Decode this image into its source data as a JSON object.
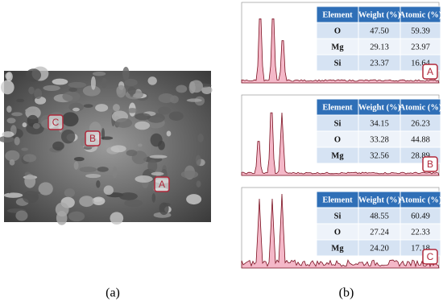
{
  "image": {
    "markers": [
      "A",
      "B",
      "C"
    ]
  },
  "spectra": [
    {
      "marker": "A",
      "table": {
        "header": [
          "Element",
          "Weight (%)",
          "Atomic (%)"
        ],
        "rows": [
          [
            "O",
            "47.50",
            "59.39"
          ],
          [
            "Mg",
            "29.13",
            "23.97"
          ],
          [
            "Si",
            "23.37",
            "16.64"
          ]
        ]
      }
    },
    {
      "marker": "B",
      "table": {
        "header": [
          "Element",
          "Weight (%)",
          "Atomic (%)"
        ],
        "rows": [
          [
            "Si",
            "34.15",
            "26.23"
          ],
          [
            "O",
            "33.28",
            "44.88"
          ],
          [
            "Mg",
            "32.56",
            "28.89"
          ]
        ]
      }
    },
    {
      "marker": "C",
      "table": {
        "header": [
          "Element",
          "Weight (%)",
          "Atomic (%)"
        ],
        "rows": [
          [
            "Si",
            "48.55",
            "60.49"
          ],
          [
            "O",
            "27.24",
            "22.33"
          ],
          [
            "Mg",
            "24.20",
            "17.18"
          ]
        ]
      }
    }
  ],
  "captions": [
    "(a)",
    "(b)"
  ]
}
